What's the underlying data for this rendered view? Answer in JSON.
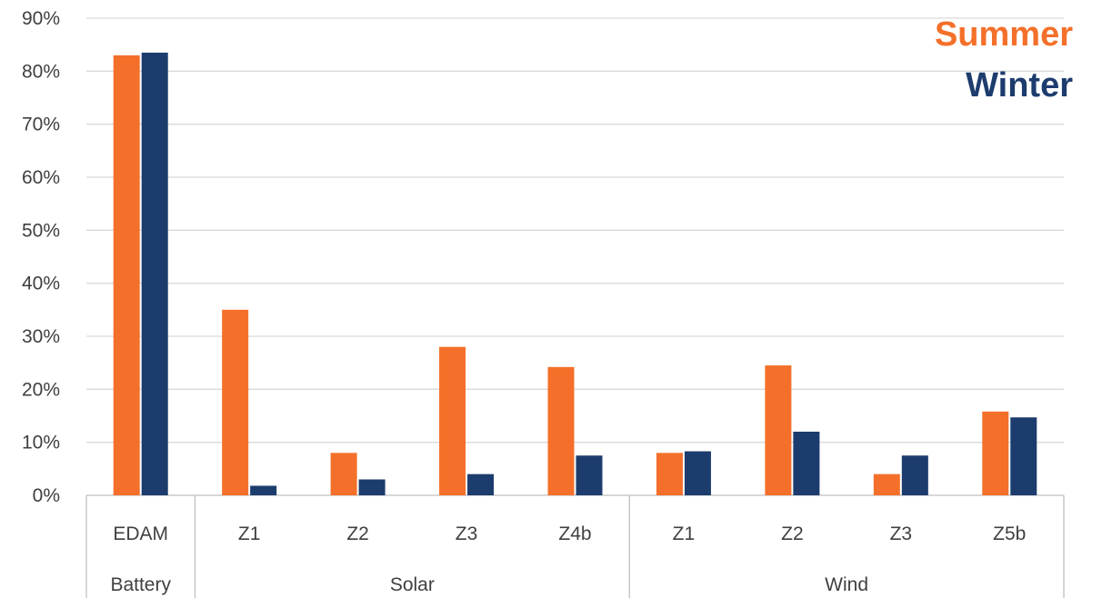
{
  "chart_data": {
    "type": "bar",
    "title": "",
    "xlabel": "",
    "ylabel": "",
    "ylim": [
      0,
      0.9
    ],
    "y_ticks": [
      "0%",
      "10%",
      "20%",
      "30%",
      "40%",
      "50%",
      "60%",
      "70%",
      "80%",
      "90%"
    ],
    "grid": true,
    "legend_position": "top-right",
    "groups": [
      {
        "label": "Battery",
        "categories": [
          "EDAM"
        ]
      },
      {
        "label": "Solar",
        "categories": [
          "Z1",
          "Z2",
          "Z3",
          "Z4b"
        ]
      },
      {
        "label": "Wind",
        "categories": [
          "Z1",
          "Z2",
          "Z3",
          "Z5b"
        ]
      }
    ],
    "categories": [
      "EDAM",
      "Z1",
      "Z2",
      "Z3",
      "Z4b",
      "Z1",
      "Z2",
      "Z3",
      "Z5b"
    ],
    "series": [
      {
        "name": "Summer",
        "color": "#f4702a",
        "values": [
          0.83,
          0.35,
          0.08,
          0.28,
          0.242,
          0.08,
          0.245,
          0.04,
          0.158
        ]
      },
      {
        "name": "Winter",
        "color": "#1d3c6e",
        "values": [
          0.835,
          0.018,
          0.03,
          0.04,
          0.075,
          0.083,
          0.12,
          0.075,
          0.147
        ]
      }
    ]
  }
}
